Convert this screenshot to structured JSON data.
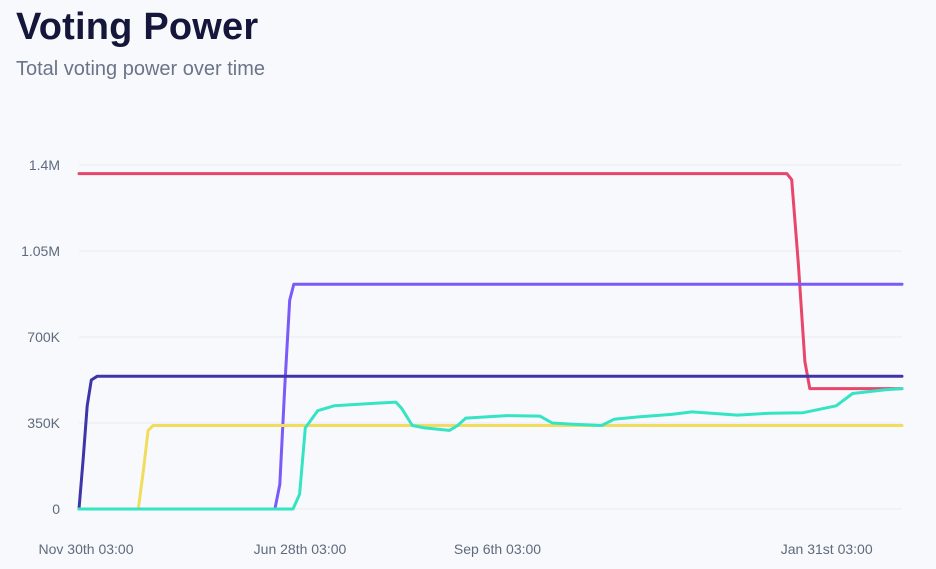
{
  "header": {
    "title": "Voting Power",
    "subtitle": "Total voting power over time"
  },
  "chart_data": {
    "type": "line",
    "title": "Voting Power",
    "subtitle": "Total voting power over time",
    "xlabel": "",
    "ylabel": "",
    "ylim": [
      0,
      1400000
    ],
    "y_ticks": [
      {
        "value": 0,
        "label": "0"
      },
      {
        "value": 350000,
        "label": "350K"
      },
      {
        "value": 700000,
        "label": "700K"
      },
      {
        "value": 1050000,
        "label": "1.05M"
      },
      {
        "value": 1400000,
        "label": "1.4M"
      }
    ],
    "x_ticks": [
      {
        "value": 0,
        "label": "Nov 30th 03:00"
      },
      {
        "value": 0.26,
        "label": "Jun 28th 03:00"
      },
      {
        "value": 0.5,
        "label": "Sep 6th 03:00"
      },
      {
        "value": 0.9,
        "label": "Jan 31st 03:00"
      }
    ],
    "xlim": [
      0,
      1
    ],
    "grid": true,
    "legend": "none",
    "series": [
      {
        "color": "#e8466b",
        "points": [
          [
            0,
            1365000
          ],
          [
            0.86,
            1365000
          ],
          [
            0.866,
            1340000
          ],
          [
            0.874,
            1000000
          ],
          [
            0.882,
            600000
          ],
          [
            0.888,
            490000
          ],
          [
            1,
            490000
          ]
        ]
      },
      {
        "color": "#7a5af8",
        "points": [
          [
            0,
            0
          ],
          [
            0.238,
            0
          ],
          [
            0.244,
            100000
          ],
          [
            0.25,
            500000
          ],
          [
            0.256,
            850000
          ],
          [
            0.261,
            915000
          ],
          [
            1,
            915000
          ]
        ]
      },
      {
        "color": "#3d35a8",
        "points": [
          [
            0,
            0
          ],
          [
            0.005,
            200000
          ],
          [
            0.01,
            420000
          ],
          [
            0.015,
            525000
          ],
          [
            0.022,
            540000
          ],
          [
            1,
            540000
          ]
        ]
      },
      {
        "color": "#f2dc5d",
        "points": [
          [
            0,
            0
          ],
          [
            0.072,
            0
          ],
          [
            0.078,
            150000
          ],
          [
            0.084,
            320000
          ],
          [
            0.09,
            340000
          ],
          [
            1,
            340000
          ]
        ]
      },
      {
        "color": "#34e4c4",
        "points": [
          [
            0,
            0
          ],
          [
            0.26,
            0
          ],
          [
            0.268,
            60000
          ],
          [
            0.275,
            330000
          ],
          [
            0.29,
            400000
          ],
          [
            0.31,
            420000
          ],
          [
            0.36,
            430000
          ],
          [
            0.385,
            435000
          ],
          [
            0.392,
            410000
          ],
          [
            0.405,
            340000
          ],
          [
            0.42,
            330000
          ],
          [
            0.45,
            320000
          ],
          [
            0.46,
            340000
          ],
          [
            0.47,
            370000
          ],
          [
            0.52,
            380000
          ],
          [
            0.56,
            378000
          ],
          [
            0.575,
            350000
          ],
          [
            0.6,
            345000
          ],
          [
            0.635,
            340000
          ],
          [
            0.65,
            365000
          ],
          [
            0.68,
            375000
          ],
          [
            0.72,
            385000
          ],
          [
            0.745,
            395000
          ],
          [
            0.8,
            382000
          ],
          [
            0.84,
            390000
          ],
          [
            0.88,
            392000
          ],
          [
            0.92,
            420000
          ],
          [
            0.94,
            470000
          ],
          [
            0.98,
            485000
          ],
          [
            1,
            490000
          ]
        ]
      }
    ]
  }
}
